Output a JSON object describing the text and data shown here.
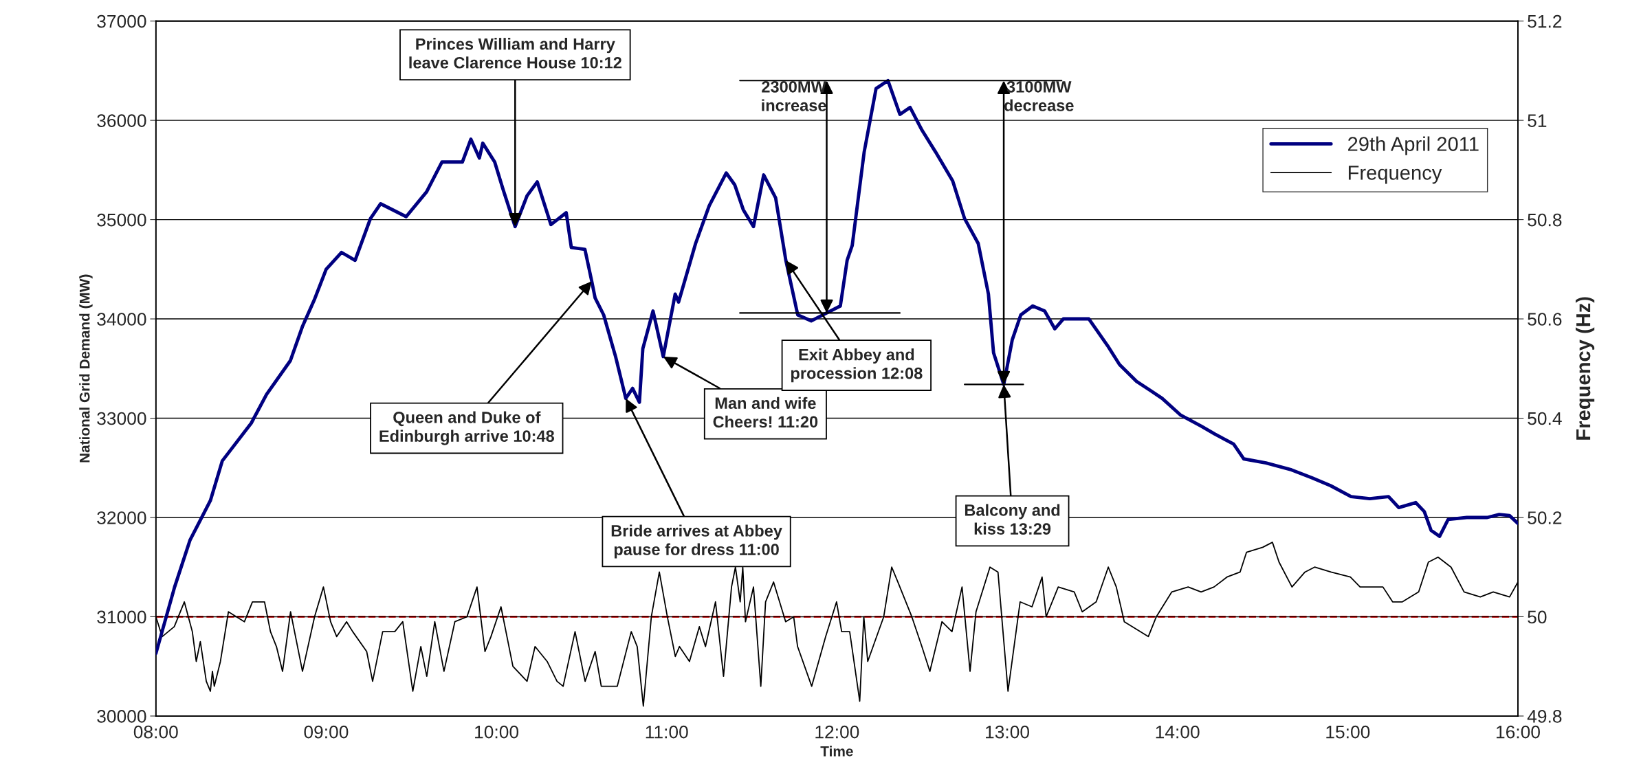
{
  "chart_data": {
    "type": "line",
    "xlabel": "Time",
    "ylabel": "National Grid Demand (MW)",
    "y2label": "Frequency (Hz)",
    "xlim": [
      8,
      16
    ],
    "xticks": [
      {
        "value": 8,
        "label": "08:00"
      },
      {
        "value": 9,
        "label": "09:00"
      },
      {
        "value": 10,
        "label": "10:00"
      },
      {
        "value": 11,
        "label": "11:00"
      },
      {
        "value": 12,
        "label": "12:00"
      },
      {
        "value": 13,
        "label": "13:00"
      },
      {
        "value": 14,
        "label": "14:00"
      },
      {
        "value": 15,
        "label": "15:00"
      },
      {
        "value": 16,
        "label": "16:00"
      }
    ],
    "ylim": [
      30000,
      37000
    ],
    "yticks": [
      30000,
      31000,
      32000,
      33000,
      34000,
      35000,
      36000,
      37000
    ],
    "y2lim": [
      49.8,
      51.2
    ],
    "y2ticks": [
      49.8,
      50,
      50.2,
      50.4,
      50.6,
      50.8,
      51,
      51.2
    ],
    "grid": "y",
    "legend": "top right",
    "marker": "none",
    "line_style": "solid",
    "series": [
      {
        "name": "29th April 2011",
        "color": "#000080",
        "axis": "y",
        "x": [
          8.0,
          8.11,
          8.2,
          8.32,
          8.39,
          8.56,
          8.65,
          8.79,
          8.86,
          8.93,
          9.0,
          9.09,
          9.17,
          9.26,
          9.32,
          9.47,
          9.59,
          9.68,
          9.8,
          9.85,
          9.9,
          9.92,
          9.99,
          10.04,
          10.11,
          10.18,
          10.24,
          10.32,
          10.41,
          10.44,
          10.52,
          10.56,
          10.58,
          10.63,
          10.7,
          10.76,
          10.8,
          10.84,
          10.86,
          10.92,
          10.98,
          11.05,
          11.07,
          11.17,
          11.25,
          11.35,
          11.4,
          11.45,
          11.51,
          11.57,
          11.64,
          11.7,
          11.77,
          11.85,
          11.94,
          12.02,
          12.06,
          12.09,
          12.16,
          12.23,
          12.3,
          12.37,
          12.43,
          12.5,
          12.58,
          12.68,
          12.75,
          12.83,
          12.89,
          12.92,
          12.98,
          13.03,
          13.08,
          13.15,
          13.22,
          13.28,
          13.33,
          13.48,
          13.59,
          13.66,
          13.76,
          13.84,
          13.91,
          14.02,
          14.14,
          14.22,
          14.33,
          14.39,
          14.52,
          14.67,
          14.79,
          14.9,
          15.02,
          15.13,
          15.24,
          15.3,
          15.4,
          15.45,
          15.49,
          15.54,
          15.59,
          15.7,
          15.82,
          15.89,
          15.95,
          16.0
        ],
        "values": [
          30630,
          31300,
          31770,
          32170,
          32570,
          32950,
          33240,
          33580,
          33920,
          34190,
          34500,
          34670,
          34590,
          35010,
          35160,
          35030,
          35280,
          35580,
          35580,
          35810,
          35620,
          35770,
          35580,
          35300,
          34930,
          35240,
          35380,
          34950,
          35070,
          34720,
          34700,
          34380,
          34210,
          34040,
          33620,
          33200,
          33300,
          33160,
          33700,
          34080,
          33620,
          34250,
          34170,
          34760,
          35140,
          35470,
          35350,
          35100,
          34930,
          35450,
          35220,
          34590,
          34040,
          33980,
          34060,
          34130,
          34590,
          34740,
          35680,
          36320,
          36400,
          36060,
          36130,
          35900,
          35680,
          35390,
          35010,
          34760,
          34250,
          33660,
          33340,
          33790,
          34040,
          34130,
          34080,
          33900,
          34000,
          34000,
          33730,
          33540,
          33370,
          33280,
          33200,
          33030,
          32920,
          32840,
          32740,
          32590,
          32550,
          32480,
          32400,
          32320,
          32210,
          32190,
          32210,
          32100,
          32150,
          32060,
          31870,
          31810,
          31980,
          32000,
          32000,
          32030,
          32020,
          31940
        ]
      },
      {
        "name": "Frequency",
        "color": "#000000",
        "axis": "y2",
        "x": [
          8.0,
          8.037,
          8.108,
          8.167,
          8.214,
          8.237,
          8.261,
          8.296,
          8.32,
          8.332,
          8.343,
          8.379,
          8.426,
          8.52,
          8.567,
          8.638,
          8.673,
          8.708,
          8.744,
          8.791,
          8.861,
          8.932,
          8.984,
          9.026,
          9.062,
          9.12,
          9.156,
          9.238,
          9.273,
          9.332,
          9.403,
          9.45,
          9.509,
          9.556,
          9.591,
          9.638,
          9.692,
          9.756,
          9.827,
          9.886,
          9.933,
          9.968,
          10.027,
          10.097,
          10.18,
          10.227,
          10.298,
          10.356,
          10.392,
          10.462,
          10.521,
          10.58,
          10.616,
          10.71,
          10.792,
          10.827,
          10.863,
          10.91,
          10.957,
          11.004,
          11.051,
          11.075,
          11.134,
          11.192,
          11.228,
          11.287,
          11.334,
          11.381,
          11.404,
          11.432,
          11.447,
          11.463,
          11.51,
          11.553,
          11.581,
          11.628,
          11.699,
          11.746,
          11.769,
          11.852,
          11.934,
          11.998,
          12.028,
          12.075,
          12.134,
          12.158,
          12.181,
          12.275,
          12.322,
          12.358,
          12.44,
          12.499,
          12.546,
          12.617,
          12.676,
          12.735,
          12.782,
          12.817,
          12.899,
          12.946,
          13.005,
          13.076,
          13.146,
          13.205,
          13.229,
          13.3,
          13.394,
          13.441,
          13.523,
          13.594,
          13.641,
          13.688,
          13.829,
          13.876,
          13.967,
          14.063,
          14.139,
          14.215,
          14.291,
          14.368,
          14.406,
          14.501,
          14.558,
          14.597,
          14.673,
          14.749,
          14.806,
          14.902,
          15.016,
          15.073,
          15.207,
          15.264,
          15.321,
          15.417,
          15.474,
          15.531,
          15.607,
          15.684,
          15.779,
          15.855,
          15.951,
          16.0
        ],
        "values": [
          50.0,
          49.96,
          49.98,
          50.03,
          49.97,
          49.91,
          49.95,
          49.87,
          49.85,
          49.89,
          49.86,
          49.91,
          50.01,
          49.99,
          50.03,
          50.03,
          49.97,
          49.94,
          49.89,
          50.01,
          49.89,
          50.0,
          50.06,
          49.99,
          49.96,
          49.99,
          49.97,
          49.93,
          49.87,
          49.97,
          49.97,
          49.99,
          49.85,
          49.94,
          49.88,
          49.99,
          49.89,
          49.99,
          50.0,
          50.06,
          49.93,
          49.96,
          50.02,
          49.9,
          49.87,
          49.94,
          49.91,
          49.87,
          49.86,
          49.97,
          49.87,
          49.93,
          49.86,
          49.86,
          49.97,
          49.94,
          49.82,
          50.0,
          50.09,
          50.0,
          49.92,
          49.94,
          49.91,
          49.98,
          49.94,
          50.03,
          49.88,
          50.06,
          50.1,
          50.03,
          50.1,
          49.99,
          50.06,
          49.86,
          50.03,
          50.07,
          49.99,
          50.0,
          49.94,
          49.86,
          49.96,
          50.03,
          49.97,
          49.97,
          49.83,
          50.0,
          49.91,
          50.0,
          50.1,
          50.07,
          50.0,
          49.94,
          49.89,
          49.99,
          49.97,
          50.06,
          49.89,
          50.01,
          50.1,
          50.09,
          49.85,
          50.03,
          50.02,
          50.08,
          50.0,
          50.06,
          50.05,
          50.01,
          50.03,
          50.1,
          50.06,
          49.99,
          49.96,
          50.0,
          50.05,
          50.06,
          50.05,
          50.06,
          50.08,
          50.09,
          50.13,
          50.14,
          50.15,
          50.11,
          50.06,
          50.09,
          50.1,
          50.09,
          50.08,
          50.06,
          50.06,
          50.03,
          50.03,
          50.05,
          50.11,
          50.12,
          50.1,
          50.05,
          50.04,
          50.05,
          50.04,
          50.07
        ]
      }
    ],
    "ref_lines": [
      {
        "axis": "y2",
        "value": 50,
        "color": "#ff0000",
        "line_style": "dashed"
      }
    ],
    "annotations": [
      {
        "text": "Princes William and Harry\nleave Clarence House 10:12",
        "x": 10.11,
        "y": 34930
      },
      {
        "text": "Queen and Duke of\nEdinburgh arrive 10:48",
        "x": 10.56,
        "y": 34380
      },
      {
        "text": "Bride arrives at Abbey\npause for dress 11:00",
        "x": 10.76,
        "y": 33200
      },
      {
        "text": "Man and wife\nCheers! 11:20",
        "x": 10.98,
        "y": 33620
      },
      {
        "text": "Exit Abbey and\nprocession 12:08",
        "x": 11.7,
        "y": 34590
      },
      {
        "text": "2300MW\nincrease",
        "x": 11.94,
        "y": 34060
      },
      {
        "text": "3100MW\ndecrease",
        "x": 12.98,
        "y": 33340
      },
      {
        "text": "Balcony and\nkiss 13:29",
        "x": 12.98,
        "y": 33340
      }
    ]
  }
}
